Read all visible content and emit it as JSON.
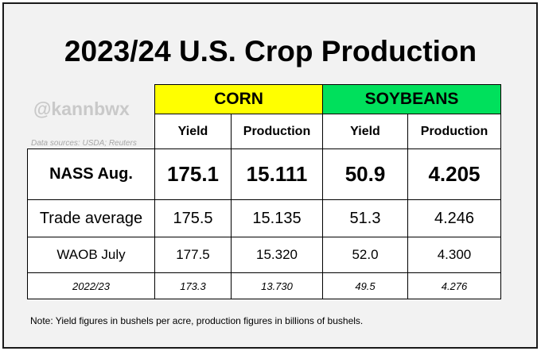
{
  "title": "2023/24 U.S. Crop Production",
  "handle": "@kannbwx",
  "sources": "Data sources: USDA; Reuters",
  "crops": [
    {
      "name": "CORN",
      "color": "#ffff00"
    },
    {
      "name": "SOYBEANS",
      "color": "#00e05c"
    }
  ],
  "subheaders": [
    "Yield",
    "Production",
    "Yield",
    "Production"
  ],
  "rows": [
    {
      "label": "NASS Aug.",
      "values": [
        "175.1",
        "15.111",
        "50.9",
        "4.205"
      ]
    },
    {
      "label": "Trade average",
      "values": [
        "175.5",
        "15.135",
        "51.3",
        "4.246"
      ]
    },
    {
      "label": "WAOB July",
      "values": [
        "177.5",
        "15.320",
        "52.0",
        "4.300"
      ]
    },
    {
      "label": "2022/23",
      "values": [
        "173.3",
        "13.730",
        "49.5",
        "4.276"
      ]
    }
  ],
  "note": "Note: Yield figures in bushels per acre, production figures in billions of bushels."
}
